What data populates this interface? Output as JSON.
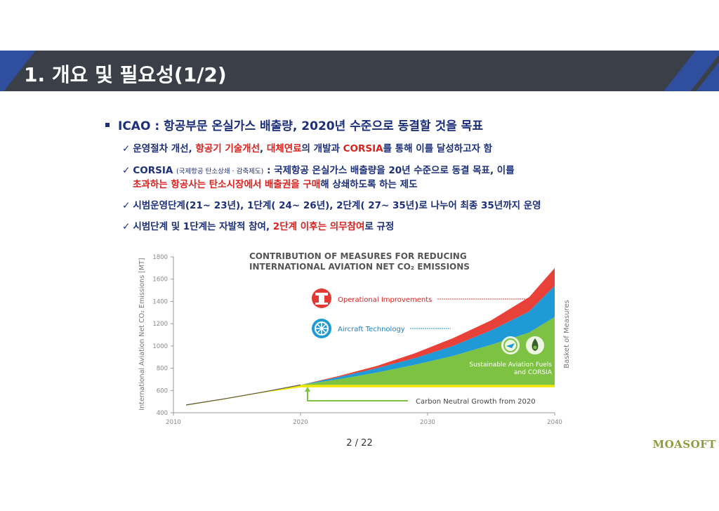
{
  "slide": {
    "title": "1. 개요 및 필요성(1/2)",
    "bullet_main": "ICAO : 항공부문 온실가스 배출량, 2020년 수준으로 동결할 것을 목표",
    "sub1": {
      "a": "운영절차 개선, ",
      "b": "항공기 기술개선",
      "c": ", ",
      "d": "대체연료",
      "e": "의 개발과 ",
      "f": "CORSIA",
      "g": "를 통해 이를 달성하고자 함"
    },
    "sub2": {
      "a": "CORSIA ",
      "b": "(국제항공 탄소상쇄 · 감축제도)",
      "c": " : 국제항공 온실가스 배출량을 20년 수준으로 동결 목표, 이를",
      "d": "초과하는 항공사는 탄소시장에서 배출권을 구매",
      "e": "해 상쇄하도록 하는 제도"
    },
    "sub3": "시범운영단계(21~ 23년), 1단계( 24~ 26년), 2단계( 27~ 35년)로 나누어 최종 35년까지 운영",
    "sub4": {
      "a": "시범단계 및 1단계는 자발적 참여, ",
      "b": "2단계 이후는 의무참여",
      "c": "로 규정"
    },
    "check": "✓",
    "page": "2 / 22",
    "brand": "MOASOFT"
  },
  "chart_data": {
    "type": "area",
    "title_line1": "CONTRIBUTION OF MEASURES FOR REDUCING",
    "title_line2": "INTERNATIONAL AVIATION NET CO₂ EMISSIONS",
    "ylabel": "International Aviation Net CO₂ Emissions [MT]",
    "right_label": "Basket of Measures",
    "x_ticks": [
      2010,
      2020,
      2030,
      2040
    ],
    "y_ticks": [
      400,
      600,
      800,
      1000,
      1200,
      1400,
      1600,
      1800
    ],
    "xlim": [
      2010,
      2040
    ],
    "ylim": [
      400,
      1800
    ],
    "x": [
      2011,
      2014,
      2017,
      2020,
      2023,
      2026,
      2029,
      2032,
      2035,
      2038,
      2040
    ],
    "series": [
      {
        "name": "Operational Improvements",
        "color": "#e8413a",
        "values": [
          470,
          525,
          585,
          650,
          730,
          820,
          935,
          1070,
          1230,
          1440,
          1700
        ]
      },
      {
        "name": "Aircraft Technology",
        "color": "#1f9ad6",
        "values": [
          470,
          525,
          585,
          650,
          720,
          800,
          890,
          1000,
          1140,
          1310,
          1540
        ]
      },
      {
        "name": "Sustainable Aviation Fuels and CORSIA",
        "color": "#7dc242",
        "values": [
          470,
          525,
          585,
          650,
          700,
          760,
          830,
          910,
          1010,
          1120,
          1260
        ]
      },
      {
        "name": "Carbon Neutral Growth from 2020",
        "color": "#f2e600",
        "values": [
          470,
          525,
          585,
          650,
          650,
          650,
          650,
          650,
          650,
          650,
          650
        ]
      }
    ],
    "labels": {
      "operational": "Operational Improvements",
      "aircraft": "Aircraft Technology",
      "saf_line1": "Sustainable Aviation Fuels",
      "saf_line2": "and CORSIA",
      "cng": "Carbon Neutral Growth from 2020"
    }
  }
}
